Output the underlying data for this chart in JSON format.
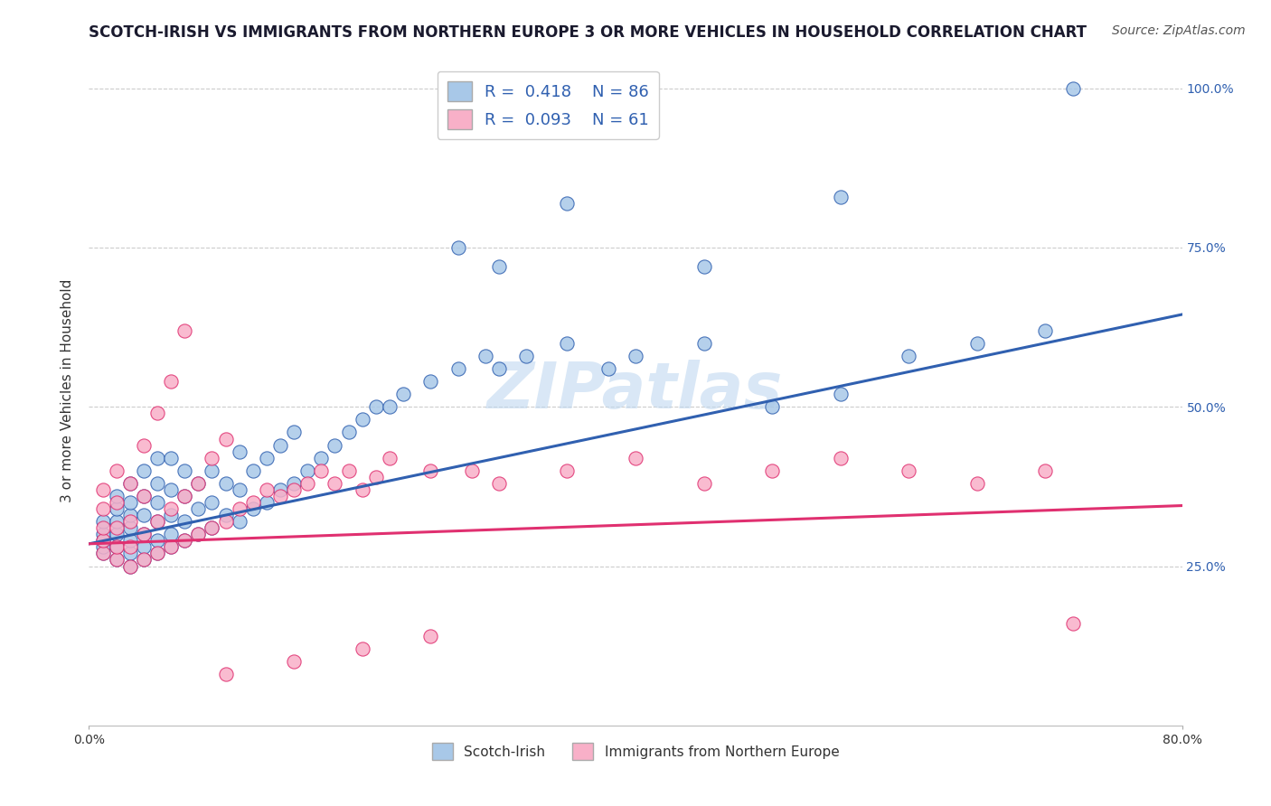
{
  "title": "SCOTCH-IRISH VS IMMIGRANTS FROM NORTHERN EUROPE 3 OR MORE VEHICLES IN HOUSEHOLD CORRELATION CHART",
  "source_text": "Source: ZipAtlas.com",
  "ylabel": "3 or more Vehicles in Household",
  "xmin": 0.0,
  "xmax": 0.8,
  "ymin": 0.0,
  "ymax": 1.05,
  "y_tick_labels": [
    "25.0%",
    "50.0%",
    "75.0%",
    "100.0%"
  ],
  "y_tick_vals": [
    0.25,
    0.5,
    0.75,
    1.0
  ],
  "blue_R": 0.418,
  "blue_N": 86,
  "pink_R": 0.093,
  "pink_N": 61,
  "legend_label_blue": "Scotch-Irish",
  "legend_label_pink": "Immigrants from Northern Europe",
  "scatter_color_blue": "#a8c8e8",
  "scatter_color_pink": "#f8b0c8",
  "line_color_blue": "#3060b0",
  "line_color_pink": "#e03070",
  "watermark_color": "#c0d8f0",
  "background_color": "#ffffff",
  "grid_color": "#cccccc",
  "blue_scatter_x": [
    0.01,
    0.01,
    0.01,
    0.01,
    0.01,
    0.02,
    0.02,
    0.02,
    0.02,
    0.02,
    0.02,
    0.03,
    0.03,
    0.03,
    0.03,
    0.03,
    0.03,
    0.03,
    0.04,
    0.04,
    0.04,
    0.04,
    0.04,
    0.04,
    0.05,
    0.05,
    0.05,
    0.05,
    0.05,
    0.05,
    0.06,
    0.06,
    0.06,
    0.06,
    0.06,
    0.07,
    0.07,
    0.07,
    0.07,
    0.08,
    0.08,
    0.08,
    0.09,
    0.09,
    0.09,
    0.1,
    0.1,
    0.11,
    0.11,
    0.11,
    0.12,
    0.12,
    0.13,
    0.13,
    0.14,
    0.14,
    0.15,
    0.15,
    0.16,
    0.17,
    0.18,
    0.19,
    0.2,
    0.21,
    0.22,
    0.23,
    0.25,
    0.27,
    0.29,
    0.3,
    0.32,
    0.35,
    0.38,
    0.4,
    0.45,
    0.5,
    0.55,
    0.6,
    0.65,
    0.7,
    0.27,
    0.3,
    0.35,
    0.45,
    0.55,
    0.72
  ],
  "blue_scatter_y": [
    0.27,
    0.28,
    0.29,
    0.3,
    0.32,
    0.26,
    0.28,
    0.3,
    0.32,
    0.34,
    0.36,
    0.25,
    0.27,
    0.29,
    0.31,
    0.33,
    0.35,
    0.38,
    0.26,
    0.28,
    0.3,
    0.33,
    0.36,
    0.4,
    0.27,
    0.29,
    0.32,
    0.35,
    0.38,
    0.42,
    0.28,
    0.3,
    0.33,
    0.37,
    0.42,
    0.29,
    0.32,
    0.36,
    0.4,
    0.3,
    0.34,
    0.38,
    0.31,
    0.35,
    0.4,
    0.33,
    0.38,
    0.32,
    0.37,
    0.43,
    0.34,
    0.4,
    0.35,
    0.42,
    0.37,
    0.44,
    0.38,
    0.46,
    0.4,
    0.42,
    0.44,
    0.46,
    0.48,
    0.5,
    0.5,
    0.52,
    0.54,
    0.56,
    0.58,
    0.56,
    0.58,
    0.6,
    0.56,
    0.58,
    0.6,
    0.5,
    0.52,
    0.58,
    0.6,
    0.62,
    0.75,
    0.72,
    0.82,
    0.72,
    0.83,
    1.0
  ],
  "pink_scatter_x": [
    0.01,
    0.01,
    0.01,
    0.01,
    0.01,
    0.02,
    0.02,
    0.02,
    0.02,
    0.02,
    0.03,
    0.03,
    0.03,
    0.03,
    0.04,
    0.04,
    0.04,
    0.04,
    0.05,
    0.05,
    0.05,
    0.06,
    0.06,
    0.06,
    0.07,
    0.07,
    0.07,
    0.08,
    0.08,
    0.09,
    0.09,
    0.1,
    0.1,
    0.11,
    0.12,
    0.13,
    0.14,
    0.15,
    0.16,
    0.17,
    0.18,
    0.19,
    0.2,
    0.21,
    0.22,
    0.25,
    0.28,
    0.3,
    0.35,
    0.4,
    0.45,
    0.5,
    0.55,
    0.6,
    0.65,
    0.7,
    0.72,
    0.1,
    0.15,
    0.2,
    0.25
  ],
  "pink_scatter_y": [
    0.27,
    0.29,
    0.31,
    0.34,
    0.37,
    0.26,
    0.28,
    0.31,
    0.35,
    0.4,
    0.25,
    0.28,
    0.32,
    0.38,
    0.26,
    0.3,
    0.36,
    0.44,
    0.27,
    0.32,
    0.49,
    0.28,
    0.34,
    0.54,
    0.29,
    0.36,
    0.62,
    0.3,
    0.38,
    0.31,
    0.42,
    0.32,
    0.45,
    0.34,
    0.35,
    0.37,
    0.36,
    0.37,
    0.38,
    0.4,
    0.38,
    0.4,
    0.37,
    0.39,
    0.42,
    0.4,
    0.4,
    0.38,
    0.4,
    0.42,
    0.38,
    0.4,
    0.42,
    0.4,
    0.38,
    0.4,
    0.16,
    0.08,
    0.1,
    0.12,
    0.14
  ],
  "blue_line_x0": 0.0,
  "blue_line_x1": 0.8,
  "blue_line_y0": 0.285,
  "blue_line_y1": 0.645,
  "pink_line_x0": 0.0,
  "pink_line_x1": 0.8,
  "pink_line_y0": 0.285,
  "pink_line_y1": 0.345,
  "title_fontsize": 12,
  "axis_label_fontsize": 11,
  "tick_fontsize": 10,
  "legend_fontsize": 13,
  "source_fontsize": 10
}
